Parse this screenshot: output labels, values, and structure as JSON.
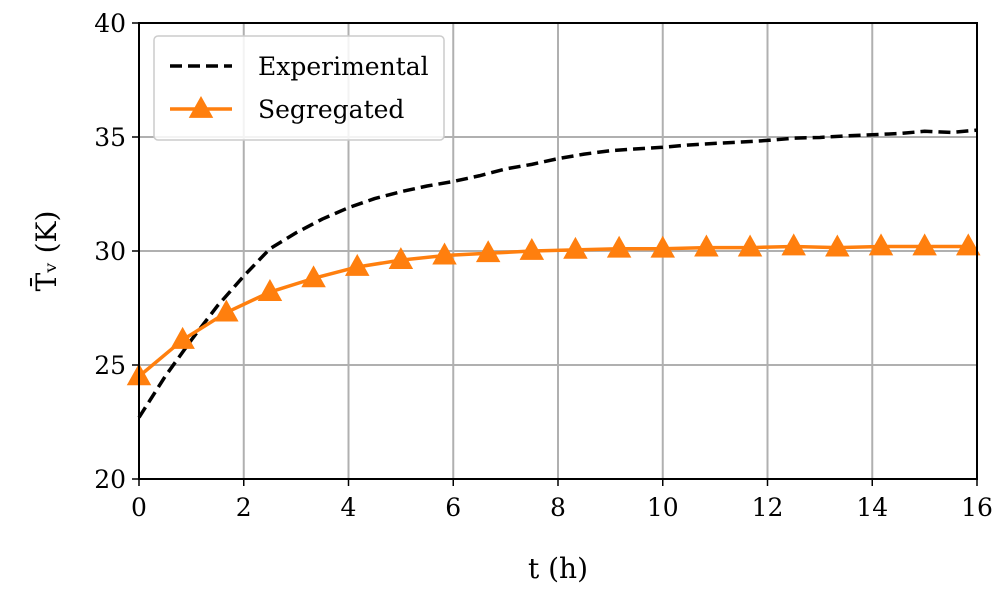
{
  "chart_data": {
    "type": "line",
    "title": "",
    "xlabel": "t (h)",
    "ylabel": "T̄ᵥ (K)",
    "xlim": [
      0,
      16
    ],
    "ylim": [
      20,
      40
    ],
    "xticks": [
      0,
      2,
      4,
      6,
      8,
      10,
      12,
      14,
      16
    ],
    "yticks": [
      20,
      25,
      30,
      35,
      40
    ],
    "grid": true,
    "legend_position": "top-left",
    "series": [
      {
        "name": "Experimental",
        "style": "dashed",
        "marker": "none",
        "color": "#000000",
        "x": [
          0,
          0.5,
          1,
          1.5,
          2,
          2.5,
          3,
          3.5,
          4,
          4.5,
          5,
          5.5,
          6,
          6.5,
          7,
          7.5,
          8,
          8.5,
          9,
          9.5,
          10,
          10.5,
          11,
          11.5,
          12,
          12.5,
          13,
          13.5,
          14,
          14.5,
          15,
          15.5,
          16
        ],
        "y": [
          22.7,
          24.5,
          26.1,
          27.6,
          28.9,
          30.1,
          30.8,
          31.4,
          31.9,
          32.3,
          32.6,
          32.85,
          33.05,
          33.3,
          33.6,
          33.8,
          34.05,
          34.25,
          34.4,
          34.48,
          34.55,
          34.65,
          34.72,
          34.78,
          34.85,
          34.95,
          34.98,
          35.05,
          35.1,
          35.15,
          35.25,
          35.2,
          35.3
        ]
      },
      {
        "name": "Segregated",
        "style": "solid",
        "marker": "triangle",
        "color": "#ff7f0e",
        "x": [
          0,
          0.833,
          1.667,
          2.5,
          3.333,
          4.167,
          5,
          5.833,
          6.667,
          7.5,
          8.333,
          9.167,
          10,
          10.833,
          11.667,
          12.5,
          13.333,
          14.167,
          15,
          15.833
        ],
        "y": [
          24.5,
          26.1,
          27.3,
          28.2,
          28.8,
          29.3,
          29.6,
          29.8,
          29.9,
          30.0,
          30.05,
          30.1,
          30.1,
          30.15,
          30.15,
          30.2,
          30.15,
          30.2,
          30.2,
          30.2
        ]
      }
    ]
  }
}
